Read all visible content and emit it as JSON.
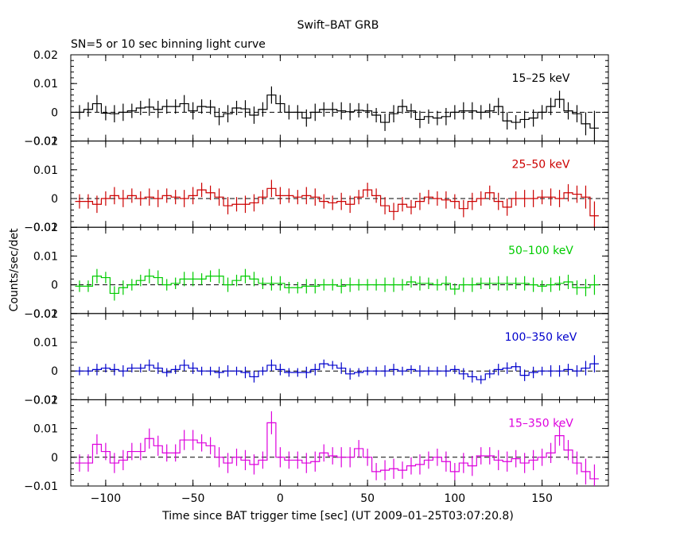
{
  "title": "Swift–BAT GRB",
  "subtitle": "SN=5 or 10 sec binning light curve",
  "xlabel": "Time since BAT trigger time [sec] (UT 2009–01–25T03:07:20.8)",
  "ylabel": "Counts/sec/det",
  "chart_data": {
    "type": "line",
    "style": "step with error bars",
    "x_ticks": [
      -100,
      -50,
      0,
      50,
      100,
      150
    ],
    "x_tick_labels": [
      "−100",
      "−50",
      "0",
      "50",
      "100",
      "150"
    ],
    "xlim": [
      -120,
      188
    ],
    "bin_width": 5,
    "x": [
      -115,
      -110,
      -105,
      -100,
      -95,
      -90,
      -85,
      -80,
      -75,
      -70,
      -65,
      -60,
      -55,
      -50,
      -45,
      -40,
      -35,
      -30,
      -25,
      -20,
      -15,
      -10,
      -5,
      0,
      5,
      10,
      15,
      20,
      25,
      30,
      35,
      40,
      45,
      50,
      55,
      60,
      65,
      70,
      75,
      80,
      85,
      90,
      95,
      100,
      105,
      110,
      115,
      120,
      125,
      130,
      135,
      140,
      145,
      150,
      155,
      160,
      165,
      170,
      175,
      180
    ],
    "reference_line": 0,
    "panels": [
      {
        "band": "15–25 keV",
        "color": "#000000",
        "ylim": [
          -0.01,
          0.02
        ],
        "y_ticks": [
          -0.01,
          0,
          0.01,
          0.02
        ],
        "y_tick_labels": [
          "−0.01",
          "0",
          "0.01",
          "0.02"
        ],
        "values": [
          0.0,
          0.001,
          0.003,
          -0.0003,
          -0.0005,
          0.0,
          0.0005,
          0.0015,
          0.0018,
          0.001,
          0.002,
          0.002,
          0.003,
          0.0005,
          0.002,
          0.0018,
          -0.0015,
          -0.0005,
          0.0015,
          0.0012,
          -0.001,
          0.001,
          0.006,
          0.003,
          0.0,
          0.0,
          -0.002,
          0.0,
          0.001,
          0.001,
          0.0005,
          0.0002,
          0.0007,
          0.0005,
          -0.001,
          -0.0035,
          -0.0005,
          0.002,
          0.0005,
          -0.0025,
          -0.0015,
          -0.002,
          -0.0015,
          0.0,
          0.0005,
          0.0005,
          0.0,
          0.0005,
          0.002,
          -0.003,
          -0.0035,
          -0.0025,
          -0.002,
          0.0,
          0.002,
          0.0045,
          0.0005,
          -0.0005,
          -0.004,
          -0.0055
        ],
        "errors": [
          0.0025,
          0.0025,
          0.003,
          0.0025,
          0.003,
          0.003,
          0.0025,
          0.0025,
          0.003,
          0.003,
          0.0025,
          0.0025,
          0.003,
          0.003,
          0.0025,
          0.0025,
          0.003,
          0.003,
          0.0025,
          0.003,
          0.003,
          0.0025,
          0.003,
          0.003,
          0.0025,
          0.0025,
          0.003,
          0.003,
          0.0025,
          0.0025,
          0.003,
          0.003,
          0.0025,
          0.0025,
          0.0025,
          0.003,
          0.003,
          0.0025,
          0.0025,
          0.003,
          0.0025,
          0.0025,
          0.003,
          0.0025,
          0.003,
          0.003,
          0.0025,
          0.0025,
          0.003,
          0.003,
          0.0025,
          0.003,
          0.003,
          0.0025,
          0.003,
          0.003,
          0.003,
          0.003,
          0.004,
          0.006
        ]
      },
      {
        "band": "25–50 keV",
        "color": "#cc0000",
        "ylim": [
          -0.01,
          0.02
        ],
        "y_ticks": [
          -0.01,
          0,
          0.01,
          0.02
        ],
        "y_tick_labels": [
          "−0.01",
          "0",
          "0.01",
          "0.02"
        ],
        "values": [
          -0.001,
          -0.001,
          -0.002,
          0.0,
          0.001,
          0.0,
          0.001,
          0.0,
          0.0005,
          0.0,
          0.001,
          0.0005,
          0.0,
          0.001,
          0.003,
          0.002,
          0.0005,
          -0.0025,
          -0.002,
          -0.002,
          -0.0015,
          0.0005,
          0.0035,
          0.001,
          0.001,
          0.0005,
          0.001,
          0.0005,
          -0.001,
          -0.0015,
          -0.001,
          -0.002,
          0.0005,
          0.003,
          0.001,
          -0.0025,
          -0.0045,
          -0.002,
          -0.003,
          -0.001,
          0.0005,
          0.0,
          -0.0005,
          -0.001,
          -0.0035,
          -0.001,
          0.0,
          0.002,
          -0.001,
          -0.003,
          0.0,
          0.0,
          0.0,
          0.0005,
          0.0005,
          0.0,
          0.002,
          0.0015,
          0.0005,
          -0.006
        ],
        "errors": [
          0.0025,
          0.0025,
          0.003,
          0.0025,
          0.003,
          0.003,
          0.0025,
          0.0025,
          0.003,
          0.003,
          0.0025,
          0.0025,
          0.003,
          0.003,
          0.0025,
          0.0025,
          0.003,
          0.003,
          0.0025,
          0.003,
          0.003,
          0.0025,
          0.003,
          0.003,
          0.0025,
          0.0025,
          0.003,
          0.003,
          0.0025,
          0.0025,
          0.003,
          0.003,
          0.0025,
          0.0025,
          0.0025,
          0.003,
          0.003,
          0.0025,
          0.0025,
          0.003,
          0.0025,
          0.0025,
          0.003,
          0.0025,
          0.003,
          0.003,
          0.0025,
          0.0025,
          0.003,
          0.003,
          0.0025,
          0.003,
          0.003,
          0.0025,
          0.003,
          0.003,
          0.003,
          0.003,
          0.004,
          0.005
        ]
      },
      {
        "band": "50–100 keV",
        "color": "#00cc00",
        "ylim": [
          -0.01,
          0.02
        ],
        "y_ticks": [
          -0.01,
          0,
          0.01,
          0.02
        ],
        "y_tick_labels": [
          "−0.01",
          "0",
          "0.01",
          "0.02"
        ],
        "values": [
          -0.0005,
          -0.0005,
          0.003,
          0.0025,
          -0.003,
          -0.001,
          0.0,
          0.0015,
          0.003,
          0.0025,
          0.0,
          0.0005,
          0.002,
          0.002,
          0.002,
          0.003,
          0.003,
          0.0,
          0.0015,
          0.003,
          0.002,
          0.0005,
          0.0005,
          0.0005,
          -0.001,
          -0.001,
          -0.0005,
          -0.0005,
          0.0,
          0.0,
          -0.0005,
          0.0,
          0.0,
          0.0,
          0.0,
          0.0,
          0.0,
          0.0,
          0.001,
          0.0005,
          0.0005,
          0.0,
          0.0005,
          -0.0015,
          0.0,
          0.0,
          0.0005,
          0.0005,
          0.0005,
          0.0005,
          0.0005,
          0.0005,
          0.0,
          -0.0005,
          0.0,
          0.0005,
          0.001,
          -0.001,
          -0.001,
          0.0
        ],
        "errors": [
          0.002,
          0.002,
          0.0025,
          0.002,
          0.0025,
          0.0025,
          0.002,
          0.002,
          0.0025,
          0.0025,
          0.002,
          0.002,
          0.0025,
          0.0025,
          0.002,
          0.002,
          0.0025,
          0.0025,
          0.002,
          0.0025,
          0.0025,
          0.002,
          0.0025,
          0.0025,
          0.002,
          0.002,
          0.0025,
          0.0025,
          0.002,
          0.002,
          0.0025,
          0.0025,
          0.002,
          0.002,
          0.002,
          0.0025,
          0.0025,
          0.002,
          0.002,
          0.0025,
          0.002,
          0.002,
          0.0025,
          0.002,
          0.0025,
          0.0025,
          0.002,
          0.002,
          0.0025,
          0.0025,
          0.002,
          0.0025,
          0.0025,
          0.002,
          0.0025,
          0.0025,
          0.0025,
          0.0025,
          0.003,
          0.0035
        ]
      },
      {
        "band": "100–350 keV",
        "color": "#0000cc",
        "ylim": [
          -0.01,
          0.02
        ],
        "y_ticks": [
          -0.01,
          0,
          0.01,
          0.02
        ],
        "y_tick_labels": [
          "−0.01",
          "0",
          "0.01",
          "0.02"
        ],
        "values": [
          0.0,
          0.0,
          0.0005,
          0.001,
          0.0005,
          0.0,
          0.001,
          0.001,
          0.002,
          0.001,
          -0.0005,
          0.0005,
          0.002,
          0.001,
          0.0,
          0.0,
          -0.0005,
          0.0,
          0.0,
          -0.0005,
          -0.002,
          0.0,
          0.002,
          0.0005,
          -0.0005,
          -0.0005,
          -0.0005,
          0.0005,
          0.0025,
          0.002,
          0.001,
          -0.001,
          -0.0005,
          0.0,
          0.0,
          0.0,
          0.0005,
          0.0,
          0.0005,
          0.0,
          0.0,
          0.0,
          0.0,
          0.0005,
          -0.001,
          -0.002,
          -0.003,
          -0.001,
          0.0005,
          0.001,
          0.0015,
          -0.0015,
          -0.0005,
          0.0,
          0.0,
          0.0,
          0.0005,
          0.0,
          0.001,
          0.0025
        ],
        "errors": [
          0.0015,
          0.0015,
          0.002,
          0.0015,
          0.002,
          0.002,
          0.0015,
          0.0015,
          0.002,
          0.002,
          0.0015,
          0.0015,
          0.002,
          0.002,
          0.0015,
          0.0015,
          0.002,
          0.002,
          0.0015,
          0.002,
          0.002,
          0.0015,
          0.002,
          0.002,
          0.0015,
          0.0015,
          0.002,
          0.002,
          0.0015,
          0.0015,
          0.002,
          0.002,
          0.0015,
          0.0015,
          0.0015,
          0.002,
          0.002,
          0.0015,
          0.0015,
          0.002,
          0.0015,
          0.0015,
          0.002,
          0.0015,
          0.002,
          0.002,
          0.0015,
          0.0015,
          0.002,
          0.002,
          0.0015,
          0.002,
          0.002,
          0.0015,
          0.002,
          0.002,
          0.002,
          0.002,
          0.0025,
          0.003
        ]
      },
      {
        "band": "15–350 keV",
        "color": "#dd00dd",
        "ylim": [
          -0.01,
          0.02
        ],
        "y_ticks": [
          -0.01,
          0,
          0.01,
          0.02
        ],
        "y_tick_labels": [
          "−0.01",
          "0",
          "0.01",
          "0.02"
        ],
        "values": [
          -0.002,
          -0.002,
          0.0045,
          0.002,
          -0.002,
          -0.001,
          0.002,
          0.002,
          0.0065,
          0.004,
          0.0015,
          0.0015,
          0.006,
          0.006,
          0.005,
          0.004,
          0.0,
          -0.002,
          0.0,
          -0.001,
          -0.0025,
          -0.001,
          0.012,
          0.0,
          -0.001,
          -0.001,
          -0.002,
          -0.0015,
          0.0015,
          0.0005,
          0.0,
          0.0,
          0.003,
          0.0,
          -0.005,
          -0.0045,
          -0.004,
          -0.0045,
          -0.003,
          -0.0025,
          -0.001,
          0.0,
          -0.0015,
          -0.005,
          -0.002,
          -0.003,
          0.0005,
          0.0005,
          -0.001,
          -0.0015,
          -0.0005,
          -0.002,
          -0.001,
          0.0,
          0.0015,
          0.0075,
          0.0025,
          -0.002,
          -0.005,
          -0.0075
        ],
        "errors": [
          0.003,
          0.003,
          0.0035,
          0.003,
          0.0035,
          0.0035,
          0.003,
          0.003,
          0.0035,
          0.0035,
          0.003,
          0.003,
          0.0035,
          0.0035,
          0.003,
          0.003,
          0.0035,
          0.0035,
          0.003,
          0.0035,
          0.0035,
          0.003,
          0.004,
          0.0035,
          0.003,
          0.003,
          0.0035,
          0.0035,
          0.003,
          0.003,
          0.0035,
          0.0035,
          0.003,
          0.003,
          0.003,
          0.0035,
          0.0035,
          0.003,
          0.003,
          0.0035,
          0.003,
          0.003,
          0.0035,
          0.003,
          0.0035,
          0.0035,
          0.003,
          0.003,
          0.0035,
          0.0035,
          0.003,
          0.0035,
          0.0035,
          0.003,
          0.0035,
          0.0035,
          0.0035,
          0.004,
          0.0045,
          0.005
        ]
      }
    ]
  }
}
